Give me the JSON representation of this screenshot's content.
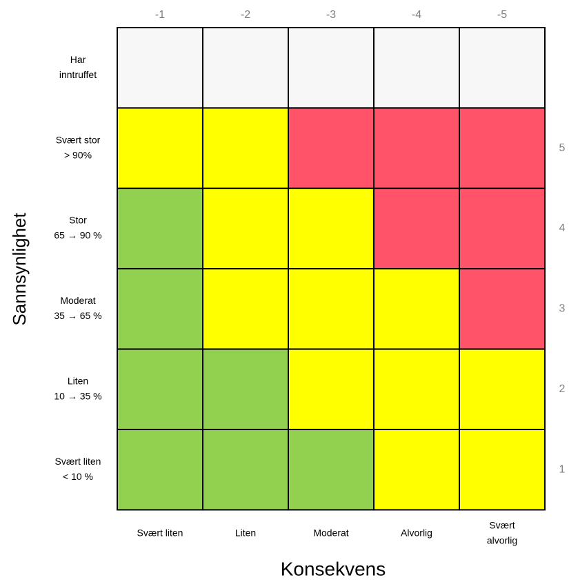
{
  "axis_titles": {
    "y": "Sannsynlighet",
    "x": "Konsekvens"
  },
  "columns": [
    {
      "number": "-1",
      "label": [
        "Svært liten"
      ]
    },
    {
      "number": "-2",
      "label": [
        "Liten"
      ]
    },
    {
      "number": "-3",
      "label": [
        "Moderat"
      ]
    },
    {
      "number": "-4",
      "label": [
        "Alvorlig"
      ]
    },
    {
      "number": "-5",
      "label": [
        "Svært",
        "alvorlig"
      ]
    }
  ],
  "rows": [
    {
      "label": [
        "Har",
        "inntruffet"
      ],
      "cells": [
        "#f7f7f7",
        "#f7f7f7",
        "#f7f7f7",
        "#f7f7f7",
        "#f7f7f7"
      ]
    },
    {
      "label": [
        "Svært stor",
        "> 90%"
      ],
      "number": "5",
      "cells": [
        "#ffff00",
        "#ffff00",
        "#ff5369",
        "#ff5369",
        "#ff5369"
      ]
    },
    {
      "label": [
        "Stor",
        "65 → 90 %"
      ],
      "number": "4",
      "cells": [
        "#92d050",
        "#ffff00",
        "#ffff00",
        "#ff5369",
        "#ff5369"
      ]
    },
    {
      "label": [
        "Moderat",
        "35 → 65 %"
      ],
      "number": "3",
      "cells": [
        "#92d050",
        "#ffff00",
        "#ffff00",
        "#ffff00",
        "#ff5369"
      ]
    },
    {
      "label": [
        "Liten",
        "10 → 35 %"
      ],
      "number": "2",
      "cells": [
        "#92d050",
        "#92d050",
        "#ffff00",
        "#ffff00",
        "#ffff00"
      ]
    },
    {
      "label": [
        "Svært liten",
        "< 10 %"
      ],
      "number": "1",
      "cells": [
        "#92d050",
        "#92d050",
        "#92d050",
        "#ffff00",
        "#ffff00"
      ]
    }
  ]
}
